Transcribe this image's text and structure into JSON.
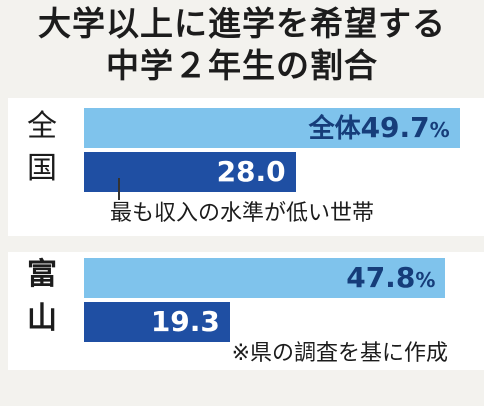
{
  "title_line1": "大学以上に進学を希望する",
  "title_line2": "中学２年生の割合",
  "chart_data": {
    "type": "bar",
    "orientation": "horizontal",
    "groups": [
      {
        "region_chars": [
          "全",
          "国"
        ],
        "bars": [
          {
            "label": "全体",
            "value": 49.7,
            "unit": "%",
            "color": "#7fc3ec"
          },
          {
            "label": "",
            "value": 28.0,
            "unit": "",
            "color": "#1f4fa3"
          }
        ]
      },
      {
        "region_chars": [
          "富",
          "山"
        ],
        "bars": [
          {
            "label": "",
            "value": 47.8,
            "unit": "%",
            "color": "#7fc3ec"
          },
          {
            "label": "",
            "value": 19.3,
            "unit": "",
            "color": "#1f4fa3"
          }
        ]
      }
    ],
    "annotation": "最も収入の水準が低い世帯",
    "note": "※県の調査を基に作成",
    "xlim": [
      0,
      50
    ]
  }
}
